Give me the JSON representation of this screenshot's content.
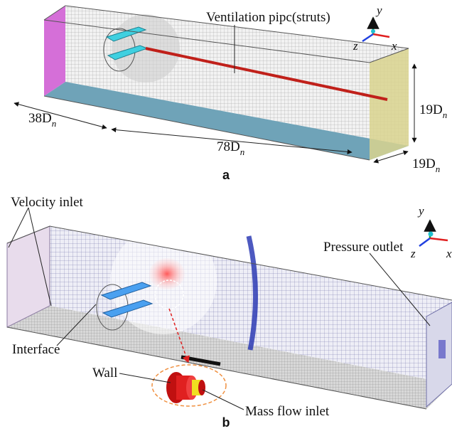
{
  "panel_a": {
    "label": "a",
    "pipe_label": "Ventilation pipc(struts)",
    "axes": {
      "y": "y",
      "z": "z",
      "x": "x"
    },
    "dimensions": [
      {
        "value": "38D",
        "subscript": "n"
      },
      {
        "value": "78D",
        "subscript": "n"
      },
      {
        "value": "19D",
        "subscript": "n"
      },
      {
        "value": "19D",
        "subscript": "n"
      }
    ]
  },
  "panel_b": {
    "label": "b",
    "axes": {
      "y": "y",
      "z": "z",
      "x": "x"
    },
    "labels": {
      "velocity_inlet": "Velocity inlet",
      "pressure_outlet": "Pressure outlet",
      "interface": "Interface",
      "wall": "Wall",
      "mass_flow_inlet": "Mass flow inlet"
    }
  }
}
